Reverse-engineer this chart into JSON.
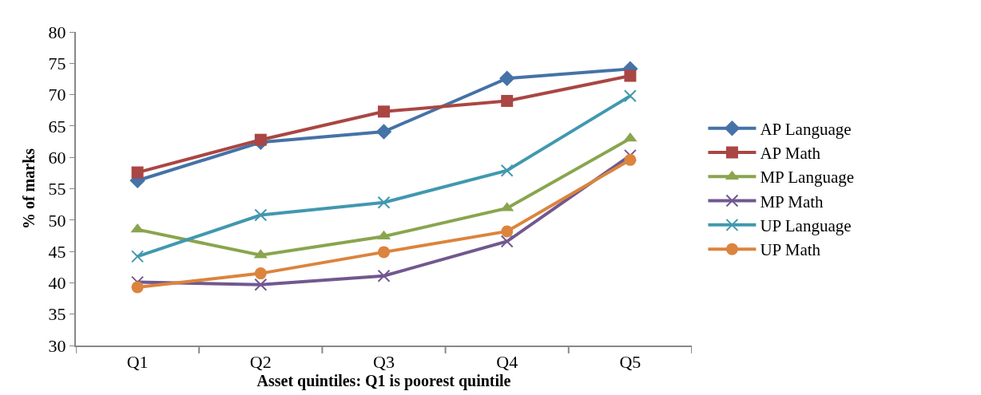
{
  "chart_data": {
    "type": "line",
    "xlabel": "Asset quintiles: Q1 is poorest quintile",
    "ylabel": "% of marks",
    "categories": [
      "Q1",
      "Q2",
      "Q3",
      "Q4",
      "Q5"
    ],
    "ylim": [
      30,
      80
    ],
    "yticks": [
      30,
      35,
      40,
      45,
      50,
      55,
      60,
      65,
      70,
      75,
      80
    ],
    "legend": "right",
    "line_style": "solid",
    "series": [
      {
        "name": "AP Language",
        "color": "#4572a7",
        "marker": "diamond",
        "values": [
          56.3,
          62.4,
          64.1,
          72.6,
          74.1
        ]
      },
      {
        "name": "AP Math",
        "color": "#aa4643",
        "marker": "square",
        "values": [
          57.6,
          62.8,
          67.3,
          69.0,
          73.0
        ]
      },
      {
        "name": "MP Language",
        "color": "#89a54e",
        "marker": "triangle",
        "values": [
          48.5,
          44.4,
          47.4,
          51.9,
          63.0
        ]
      },
      {
        "name": "MP Math",
        "color": "#71588f",
        "marker": "cross",
        "values": [
          40.1,
          39.7,
          41.1,
          46.6,
          60.3
        ]
      },
      {
        "name": "UP Language",
        "color": "#4198af",
        "marker": "cross",
        "values": [
          44.2,
          50.8,
          52.8,
          57.9,
          69.8
        ]
      },
      {
        "name": "UP Math",
        "color": "#db843d",
        "marker": "circle",
        "values": [
          39.3,
          41.5,
          44.9,
          48.2,
          59.6
        ]
      }
    ]
  }
}
